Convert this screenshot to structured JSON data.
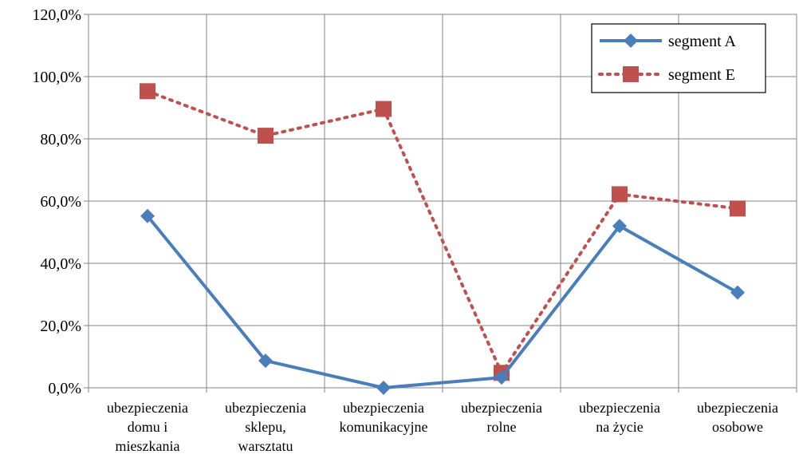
{
  "chart_data": {
    "type": "line",
    "categories": [
      [
        "ubezpieczenia",
        "domu i",
        "mieszkania"
      ],
      [
        "ubezpieczenia",
        "sklepu,",
        "warsztatu"
      ],
      [
        "ubezpieczenia",
        "komunikacyjne"
      ],
      [
        "ubezpieczenia",
        "rolne"
      ],
      [
        "ubezpieczenia",
        "na życie"
      ],
      [
        "ubezpieczenia",
        "osobowe"
      ]
    ],
    "series": [
      {
        "name": "segment A",
        "values": [
          55.2,
          8.7,
          0.0,
          3.3,
          52.0,
          30.6
        ],
        "color": "#4a7ebb",
        "marker": "diamond",
        "line_style": "solid"
      },
      {
        "name": "segment E",
        "values": [
          95.3,
          81.0,
          89.6,
          4.8,
          62.2,
          57.6
        ],
        "color": "#c0504d",
        "marker": "square",
        "line_style": "dotted"
      }
    ],
    "yticks": [
      "0,0%",
      "20,0%",
      "40,0%",
      "60,0%",
      "80,0%",
      "100,0%",
      "120,0%"
    ],
    "ylim": [
      0,
      120
    ],
    "grid": true,
    "legend_position": "top-right"
  }
}
